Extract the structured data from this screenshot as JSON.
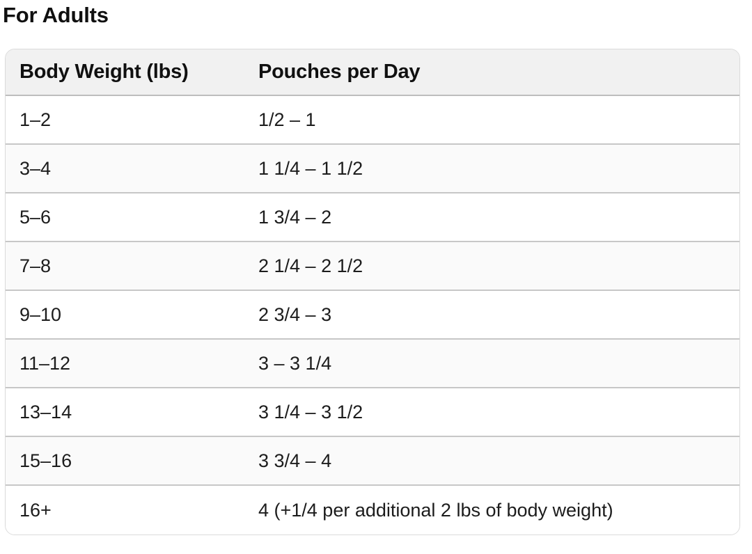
{
  "page_title": "For Adults",
  "table": {
    "columns": [
      {
        "label": "Body Weight (lbs)"
      },
      {
        "label": "Pouches per Day"
      }
    ],
    "rows": [
      {
        "weight": "1–2",
        "pouches": "1/2 – 1"
      },
      {
        "weight": "3–4",
        "pouches": "1 1/4 – 1 1/2"
      },
      {
        "weight": "5–6",
        "pouches": "1 3/4 – 2"
      },
      {
        "weight": "7–8",
        "pouches": "2 1/4 – 2 1/2"
      },
      {
        "weight": "9–10",
        "pouches": "2 3/4 – 3"
      },
      {
        "weight": "11–12",
        "pouches": "3 – 3 1/4"
      },
      {
        "weight": "13–14",
        "pouches": "3 1/4 – 3 1/2"
      },
      {
        "weight": "15–16",
        "pouches": "3 3/4 – 4"
      },
      {
        "weight": "16+",
        "pouches": "4 (+1/4 per additional 2 lbs of body weight)"
      }
    ],
    "colors": {
      "header_bg": "#f1f1f1",
      "row_bg": "#ffffff",
      "row_alt_bg": "#fafafa",
      "divider": "#c7c7c7",
      "card_border": "#dadada",
      "text": "#161616"
    }
  }
}
